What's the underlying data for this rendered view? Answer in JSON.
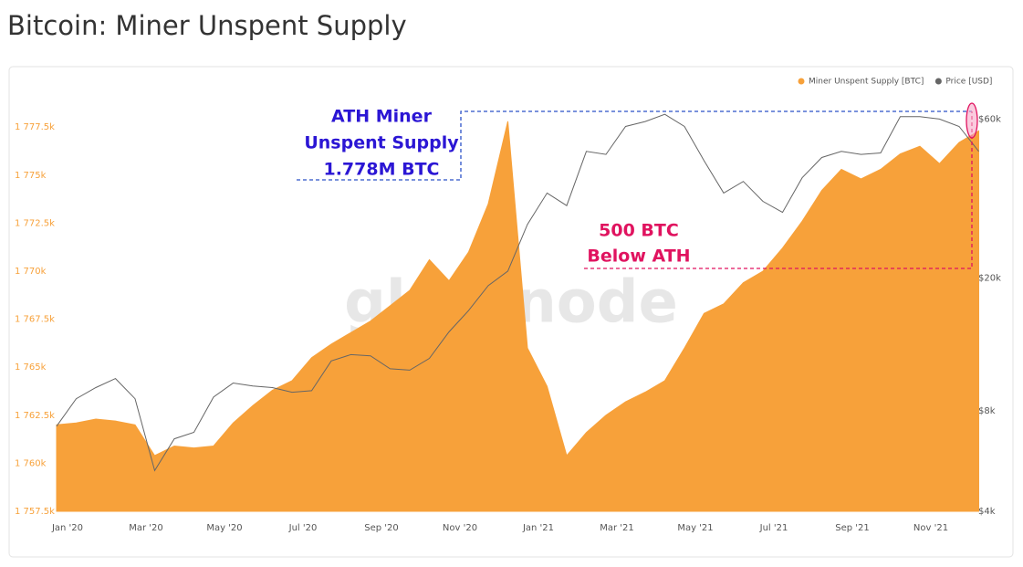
{
  "chart_data": {
    "type": "area-line",
    "title": "Bitcoin: Miner Unspent Supply",
    "watermark": "glassnode",
    "categories": [
      "Jan '20",
      null,
      null,
      null,
      "Mar '20",
      null,
      null,
      null,
      "May '20",
      null,
      null,
      null,
      "Jul '20",
      null,
      null,
      null,
      "Sep '20",
      null,
      null,
      null,
      "Nov '20",
      null,
      null,
      null,
      "Jan '21",
      null,
      null,
      null,
      "Mar '21",
      null,
      null,
      null,
      "May '21",
      null,
      null,
      null,
      "Jul '21",
      null,
      null,
      null,
      "Sep '21",
      null,
      null,
      null,
      "Nov '21",
      null,
      null,
      null
    ],
    "series": [
      {
        "name": "Miner Unspent Supply [BTC]",
        "color": "#f7a13a",
        "axis": "y",
        "values": [
          1762000,
          1762100,
          1762300,
          1762200,
          1762000,
          1760400,
          1760900,
          1760800,
          1760900,
          1762100,
          1763000,
          1763800,
          1764300,
          1765500,
          1766200,
          1766800,
          1767400,
          1768200,
          1769000,
          1770600,
          1769500,
          1771000,
          1773500,
          1777800,
          1766000,
          1764000,
          1760400,
          1761600,
          1762500,
          1763200,
          1763700,
          1764300,
          1766000,
          1767800,
          1768300,
          1769400,
          1770000,
          1771200,
          1772600,
          1774200,
          1775300,
          1774800,
          1775300,
          1776100,
          1776500,
          1775600,
          1776700,
          1777300
        ]
      },
      {
        "name": "Price [USD]",
        "color": "#666666",
        "axis": "y2",
        "values": [
          7200,
          8700,
          9400,
          10000,
          8700,
          5300,
          6600,
          6900,
          8800,
          9700,
          9500,
          9400,
          9100,
          9200,
          11300,
          11800,
          11700,
          10700,
          10600,
          11500,
          13800,
          16000,
          19000,
          21000,
          29000,
          36000,
          33000,
          48000,
          47000,
          57000,
          59000,
          62000,
          57000,
          45000,
          36000,
          39000,
          34000,
          31500,
          40000,
          46000,
          48000,
          47000,
          47500,
          61000,
          61000,
          60000,
          57000,
          48000
        ]
      }
    ],
    "ylim": [
      1757500,
      1779600
    ],
    "yticks": [
      {
        "value": 1757500,
        "label": "1 757.5k"
      },
      {
        "value": 1760000,
        "label": "1 760k"
      },
      {
        "value": 1762500,
        "label": "1 762.5k"
      },
      {
        "value": 1765000,
        "label": "1 765k"
      },
      {
        "value": 1767500,
        "label": "1 767.5k"
      },
      {
        "value": 1770000,
        "label": "1 770k"
      },
      {
        "value": 1772500,
        "label": "1 772.5k"
      },
      {
        "value": 1775000,
        "label": "1 775k"
      },
      {
        "value": 1777500,
        "label": "1 777.5k"
      }
    ],
    "y2lim": [
      4000,
      75000
    ],
    "y2scale": "log",
    "y2ticks": [
      {
        "value": 4000,
        "label": "$4k"
      },
      {
        "value": 8000,
        "label": "$8k"
      },
      {
        "value": 20000,
        "label": "$20k"
      },
      {
        "value": 60000,
        "label": "$60k"
      }
    ],
    "grid": false,
    "legend": "top-right",
    "annotations": [
      {
        "lines": [
          "ATH Miner",
          "Unspent Supply",
          "1.778M BTC"
        ],
        "color": "#2b16d4"
      },
      {
        "lines": [
          "500 BTC",
          "Below ATH"
        ],
        "color": "#e0135f"
      }
    ]
  }
}
